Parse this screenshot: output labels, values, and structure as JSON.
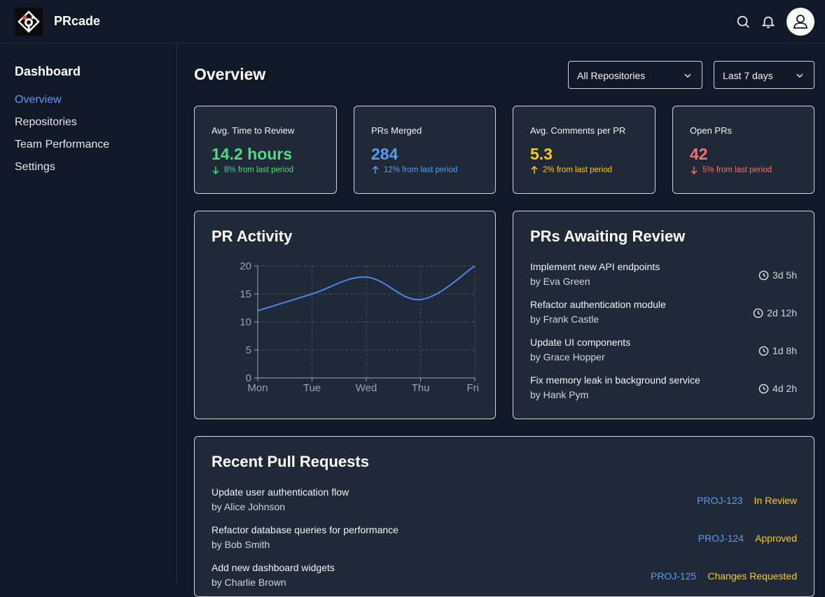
{
  "app": {
    "name": "PRcade"
  },
  "sidebar": {
    "title": "Dashboard",
    "items": [
      {
        "label": "Overview",
        "active": true
      },
      {
        "label": "Repositories",
        "active": false
      },
      {
        "label": "Team Performance",
        "active": false
      },
      {
        "label": "Settings",
        "active": false
      }
    ]
  },
  "header": {
    "title": "Overview",
    "repo_filter": "All Repositories",
    "range_filter": "Last 7 days"
  },
  "stats": [
    {
      "label": "Avg. Time to Review",
      "value": "14.2 hours",
      "change": "8% from last period",
      "direction": "down",
      "color": "#4ade80"
    },
    {
      "label": "PRs Merged",
      "value": "284",
      "change": "12% from last period",
      "direction": "up",
      "color": "#5b9cf0"
    },
    {
      "label": "Avg. Comments per PR",
      "value": "5.3",
      "change": "2% from last period",
      "direction": "up",
      "color": "#facc15"
    },
    {
      "label": "Open PRs",
      "value": "42",
      "change": "5% from last period",
      "direction": "down",
      "color": "#f87171"
    }
  ],
  "activity": {
    "title": "PR Activity",
    "chart_data": {
      "type": "line",
      "categories": [
        "Mon",
        "Tue",
        "Wed",
        "Thu",
        "Fri"
      ],
      "values": [
        12,
        15,
        18,
        14,
        20
      ],
      "y_ticks": [
        0,
        5,
        10,
        15,
        20
      ],
      "ylim": [
        0,
        20
      ],
      "grid": true,
      "line_color": "#4a86e8"
    }
  },
  "awaiting": {
    "title": "PRs Awaiting Review",
    "items": [
      {
        "title": "Implement new API endpoints",
        "author": "by Eva Green",
        "time": "3d 5h"
      },
      {
        "title": "Refactor authentication module",
        "author": "by Frank Castle",
        "time": "2d 12h"
      },
      {
        "title": "Update UI components",
        "author": "by Grace Hopper",
        "time": "1d 8h"
      },
      {
        "title": "Fix memory leak in background service",
        "author": "by Hank Pym",
        "time": "4d 2h"
      }
    ]
  },
  "recent": {
    "title": "Recent Pull Requests",
    "items": [
      {
        "title": "Update user authentication flow",
        "author": "by Alice Johnson",
        "id": "PROJ-123",
        "status": "In Review"
      },
      {
        "title": "Refactor database queries for performance",
        "author": "by Bob Smith",
        "id": "PROJ-124",
        "status": "Approved"
      },
      {
        "title": "Add new dashboard widgets",
        "author": "by Charlie Brown",
        "id": "PROJ-125",
        "status": "Changes Requested"
      }
    ]
  },
  "icons": [
    "logo-icon",
    "search-icon",
    "bell-icon",
    "user-icon",
    "chevron-down-icon",
    "arrow-down-icon",
    "arrow-up-icon",
    "clock-icon"
  ]
}
